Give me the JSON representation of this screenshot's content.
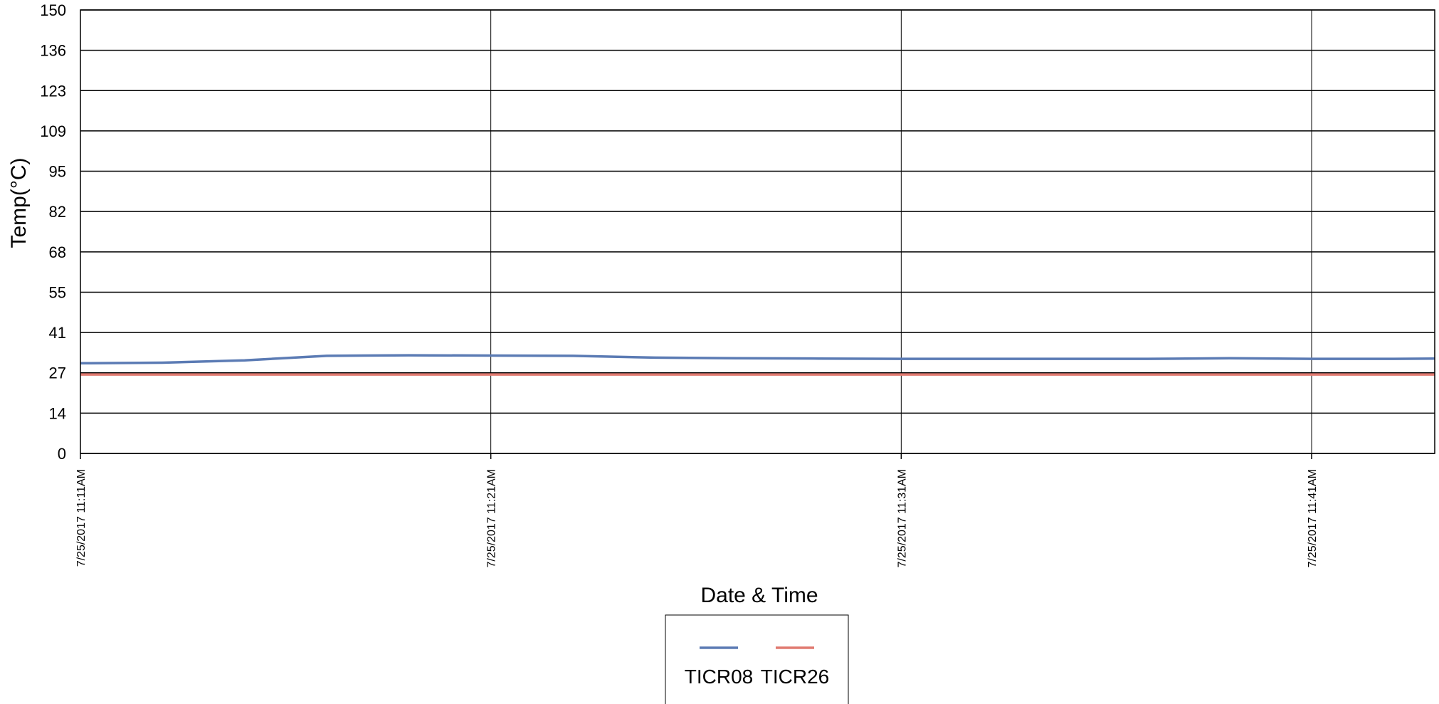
{
  "chart_data": {
    "type": "line",
    "xlabel": "Date & Time",
    "ylabel": "Temp(°C)",
    "ylim": [
      0,
      150
    ],
    "yticks": [
      "0",
      "14",
      "27",
      "41",
      "55",
      "68",
      "82",
      "95",
      "109",
      "123",
      "136",
      "150"
    ],
    "xlim": [
      "7/25/2017 11:11AM",
      "7/25/2017 11:44AM"
    ],
    "xticks": [
      "7/25/2017  11:11AM",
      "7/25/2017  11:21AM",
      "7/25/2017  11:31AM",
      "7/25/2017  11:41AM"
    ],
    "grid": true,
    "legend_position": "bottom",
    "x": [
      "7/25/2017 11:11AM",
      "7/25/2017 11:13AM",
      "7/25/2017 11:15AM",
      "7/25/2017 11:17AM",
      "7/25/2017 11:19AM",
      "7/25/2017 11:21AM",
      "7/25/2017 11:23AM",
      "7/25/2017 11:25AM",
      "7/25/2017 11:27AM",
      "7/25/2017 11:29AM",
      "7/25/2017 11:31AM",
      "7/25/2017 11:33AM",
      "7/25/2017 11:35AM",
      "7/25/2017 11:37AM",
      "7/25/2017 11:39AM",
      "7/25/2017 11:41AM",
      "7/25/2017 11:43AM",
      "7/25/2017 11:44AM"
    ],
    "series": [
      {
        "name": "TICR08",
        "color": "#5b7bb4",
        "values": [
          30.5,
          30.7,
          31.5,
          33.0,
          33.2,
          33.1,
          33.0,
          32.4,
          32.2,
          32.1,
          32.0,
          32.0,
          32.0,
          32.0,
          32.2,
          32.0,
          32.0,
          32.1
        ]
      },
      {
        "name": "TICR26",
        "color": "#e07a70",
        "values": [
          26.7,
          26.7,
          26.7,
          26.7,
          26.7,
          26.7,
          26.7,
          26.7,
          26.7,
          26.7,
          26.7,
          26.7,
          26.7,
          26.7,
          26.7,
          26.7,
          26.7,
          26.7
        ]
      }
    ]
  }
}
